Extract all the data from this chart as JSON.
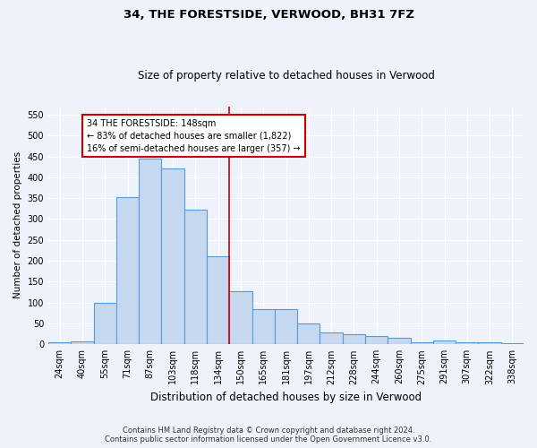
{
  "title1": "34, THE FORESTSIDE, VERWOOD, BH31 7FZ",
  "title2": "Size of property relative to detached houses in Verwood",
  "xlabel": "Distribution of detached houses by size in Verwood",
  "ylabel": "Number of detached properties",
  "categories": [
    "24sqm",
    "40sqm",
    "55sqm",
    "71sqm",
    "87sqm",
    "103sqm",
    "118sqm",
    "134sqm",
    "150sqm",
    "165sqm",
    "181sqm",
    "197sqm",
    "212sqm",
    "228sqm",
    "244sqm",
    "260sqm",
    "275sqm",
    "291sqm",
    "307sqm",
    "322sqm",
    "338sqm"
  ],
  "values": [
    4,
    7,
    100,
    353,
    445,
    422,
    322,
    210,
    128,
    85,
    85,
    50,
    28,
    25,
    20,
    16,
    5,
    10,
    5,
    4,
    3
  ],
  "bar_color": "#c5d8f0",
  "bar_edge_color": "#5b9bd5",
  "vline_color": "#cc0000",
  "vline_bar_index": 8,
  "annotation_line1": "34 THE FORESTSIDE: 148sqm",
  "annotation_line2": "← 83% of detached houses are smaller (1,822)",
  "annotation_line3": "16% of semi-detached houses are larger (357) →",
  "annotation_box_color": "#ffffff",
  "annotation_box_edge": "#cc0000",
  "ylim": [
    0,
    570
  ],
  "yticks": [
    0,
    50,
    100,
    150,
    200,
    250,
    300,
    350,
    400,
    450,
    500,
    550
  ],
  "footer1": "Contains HM Land Registry data © Crown copyright and database right 2024.",
  "footer2": "Contains public sector information licensed under the Open Government Licence v3.0.",
  "bg_color": "#eef2fa",
  "grid_color": "#ffffff",
  "title1_fontsize": 9.5,
  "title2_fontsize": 8.5,
  "xlabel_fontsize": 8.5,
  "ylabel_fontsize": 7.5,
  "tick_fontsize": 7,
  "footer_fontsize": 6.0
}
